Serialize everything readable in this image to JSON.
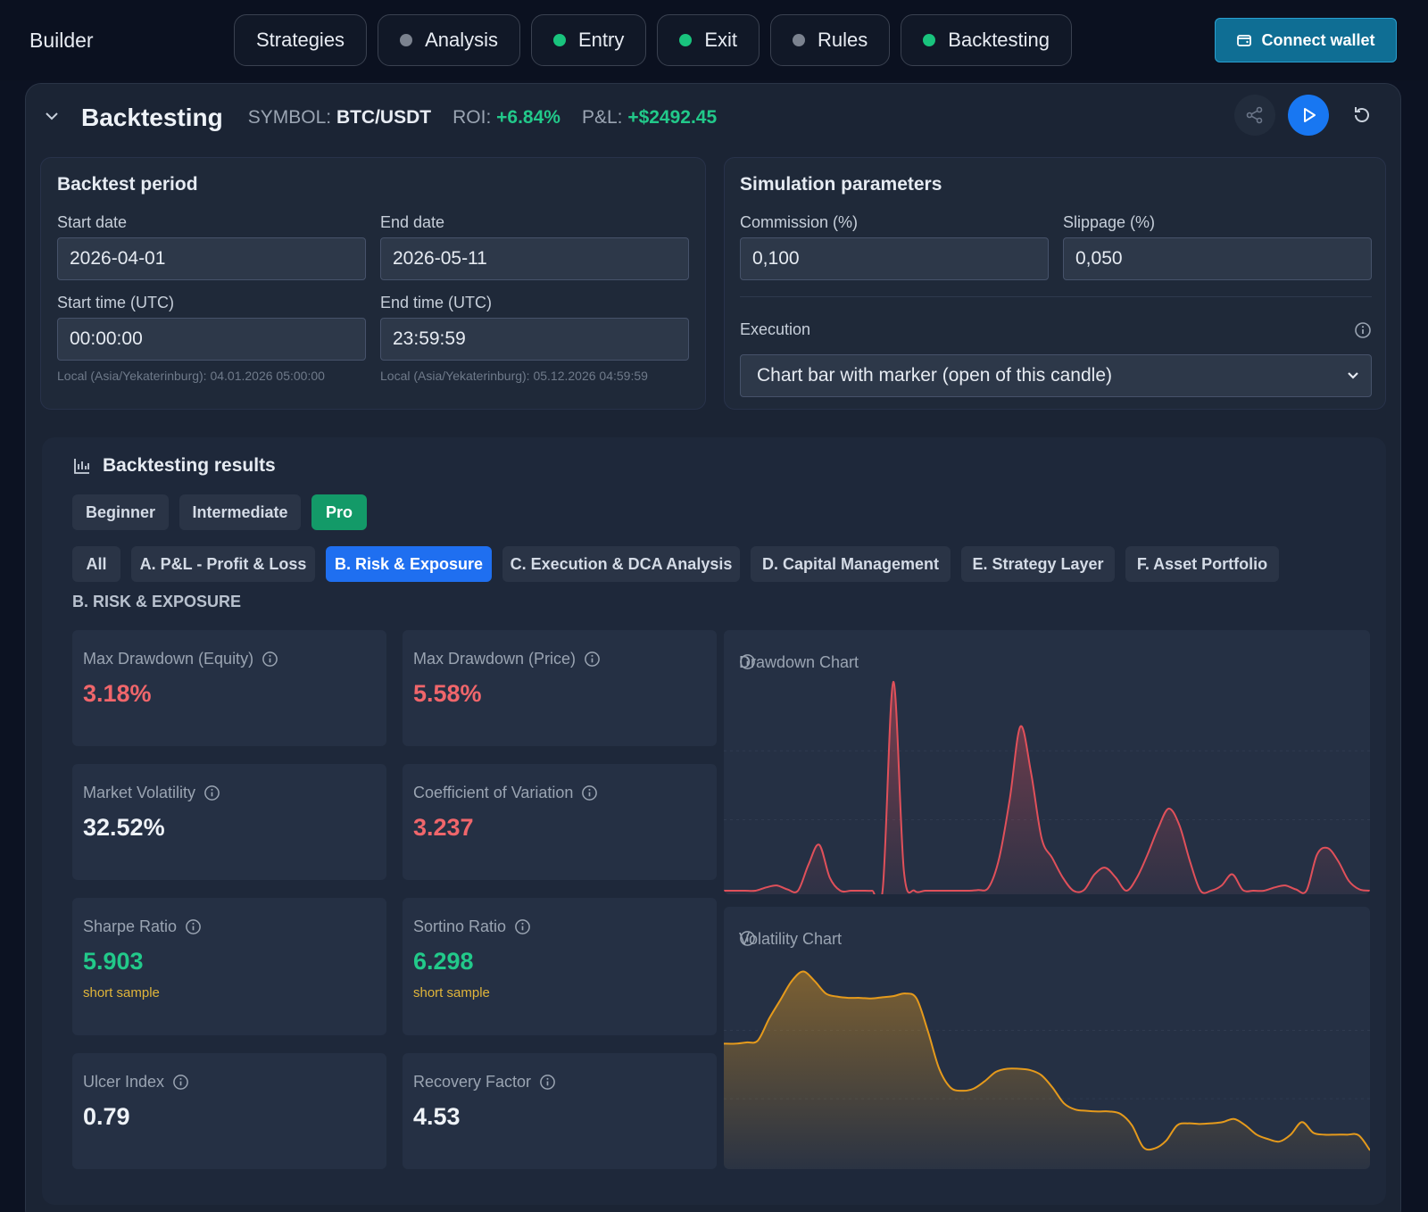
{
  "app": {
    "title": "Builder",
    "connect_label": "Connect wallet"
  },
  "steps": [
    {
      "label": "Strategies",
      "status": "none"
    },
    {
      "label": "Analysis",
      "status": "gray"
    },
    {
      "label": "Entry",
      "status": "green"
    },
    {
      "label": "Exit",
      "status": "green"
    },
    {
      "label": "Rules",
      "status": "gray"
    },
    {
      "label": "Backtesting",
      "status": "green"
    }
  ],
  "header": {
    "title": "Backtesting",
    "symbol_label": "SYMBOL:",
    "symbol": "BTC/USDT",
    "roi_label": "ROI:",
    "roi": "+6.84%",
    "pnl_label": "P&L:",
    "pnl": "+$2492.45"
  },
  "period": {
    "title": "Backtest period",
    "start_date_label": "Start date",
    "start_date": "2026-04-01",
    "end_date_label": "End date",
    "end_date": "2026-05-11",
    "start_time_label": "Start time (UTC)",
    "start_time": "00:00:00",
    "end_time_label": "End time (UTC)",
    "end_time": "23:59:59",
    "start_local": "Local (Asia/Yekaterinburg): 04.01.2026 05:00:00",
    "end_local": "Local (Asia/Yekaterinburg): 05.12.2026 04:59:59"
  },
  "simulation": {
    "title": "Simulation parameters",
    "commission_label": "Commission (%)",
    "commission": "0,100",
    "slippage_label": "Slippage (%)",
    "slippage": "0,050",
    "execution_label": "Execution",
    "execution": "Chart bar with marker (open of this candle)"
  },
  "results": {
    "title": "Backtesting results",
    "levels": [
      "Beginner",
      "Intermediate",
      "Pro"
    ],
    "active_level": "Pro",
    "tabs": [
      "All",
      "A. P&L - Profit & Loss",
      "B. Risk & Exposure",
      "C. Execution & DCA Analysis",
      "D. Capital Management",
      "E. Strategy Layer",
      "F. Asset Portfolio"
    ],
    "active_tab": "B. Risk & Exposure",
    "section": "B. RISK & EXPOSURE",
    "metrics": [
      {
        "name": "Max Drawdown (Equity)",
        "value": "3.18%",
        "tone": "red",
        "note": ""
      },
      {
        "name": "Max Drawdown (Price)",
        "value": "5.58%",
        "tone": "red",
        "note": ""
      },
      {
        "name": "Market Volatility",
        "value": "32.52%",
        "tone": "white",
        "note": ""
      },
      {
        "name": "Coefficient of Variation",
        "value": "3.237",
        "tone": "red",
        "note": ""
      },
      {
        "name": "Sharpe Ratio",
        "value": "5.903",
        "tone": "green",
        "note": "short sample"
      },
      {
        "name": "Sortino Ratio",
        "value": "6.298",
        "tone": "green",
        "note": "short sample"
      },
      {
        "name": "Ulcer Index",
        "value": "0.79",
        "tone": "white",
        "note": ""
      },
      {
        "name": "Recovery Factor",
        "value": "4.53",
        "tone": "white",
        "note": ""
      }
    ],
    "drawdown_chart_title": "Drawdown Chart",
    "volatility_chart_title": "Volatility Chart"
  },
  "colors": {
    "accent_green": "#19c37d",
    "accent_blue": "#1f6ff0",
    "negative": "#f0666b",
    "drawdown_line": "#e0505a",
    "volatility_line": "#e59a1c"
  },
  "chart_data": [
    {
      "type": "area",
      "title": "Drawdown Chart",
      "values": [
        0,
        0,
        0,
        0,
        0.05,
        0.08,
        0.02,
        0,
        0.4,
        0.7,
        0.2,
        0,
        0,
        0,
        0,
        0.02,
        3.18,
        0.3,
        0,
        0,
        0,
        0,
        0,
        0,
        0.01,
        0.05,
        0.5,
        1.4,
        2.5,
        1.8,
        0.8,
        0.5,
        0.2,
        0,
        0.01,
        0.25,
        0.35,
        0.2,
        0,
        0.2,
        0.55,
        0.95,
        1.25,
        1.0,
        0.45,
        0,
        0,
        0.08,
        0.25,
        0.01,
        0,
        0,
        0.05,
        0.08,
        0.02,
        0,
        0.55,
        0.65,
        0.45,
        0.15,
        0.02,
        0
      ]
    },
    {
      "type": "area",
      "title": "Volatility Chart",
      "values": [
        34,
        34,
        34.2,
        34.5,
        38,
        41,
        44,
        45.5,
        44,
        42,
        41.5,
        41.3,
        41.3,
        41.2,
        41.4,
        41.6,
        42,
        41.2,
        36,
        30,
        27,
        26.5,
        26.8,
        28,
        29.5,
        30,
        30,
        29.8,
        29,
        27,
        24.5,
        23.5,
        23.3,
        23.2,
        23.2,
        22.8,
        21,
        17.5,
        17.3,
        18.5,
        21,
        21.3,
        21.2,
        21.3,
        21.5,
        22,
        21,
        19.5,
        18.8,
        18.4,
        19.5,
        21.5,
        19.8,
        19.5,
        19.5,
        19.5,
        19.4,
        17
      ]
    }
  ]
}
